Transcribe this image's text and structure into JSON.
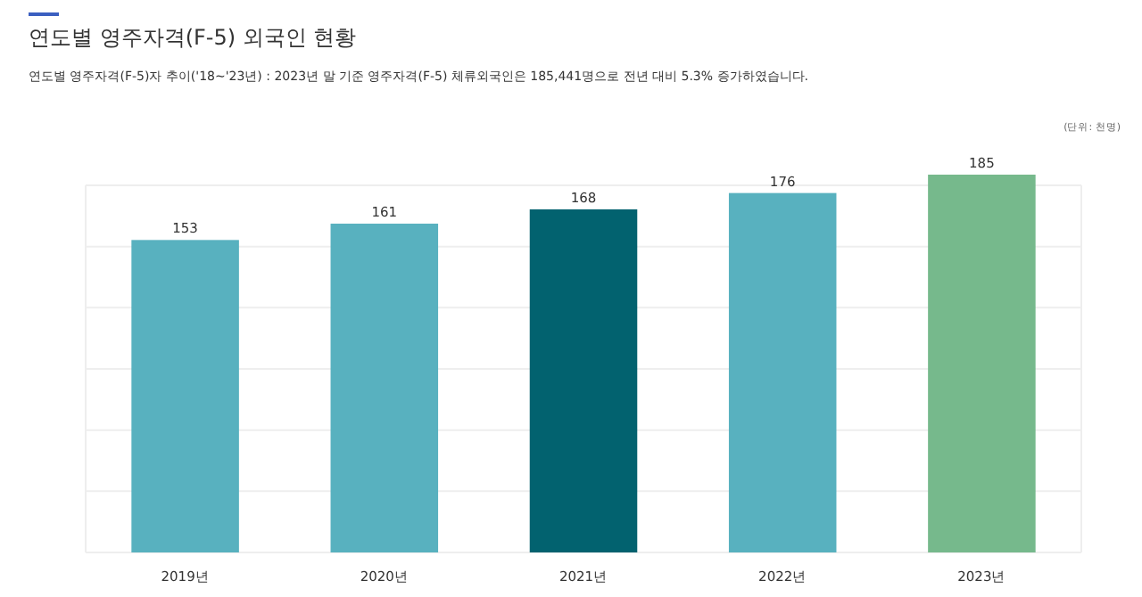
{
  "chart_data": {
    "type": "bar",
    "title": "연도별 영주자격(F-5) 외국인 현황",
    "subtitle": "연도별 영주자격(F-5)자 추이('18~'23년) : 2023년 말 기준 영주자격(F-5) 체류외국인은 185,441명으로 전년 대비 5.3% 증가하였습니다.",
    "annotations": [
      "(단위: 천명)"
    ],
    "categories": [
      "2019년",
      "2020년",
      "2021년",
      "2022년",
      "2023년"
    ],
    "values": [
      153,
      161,
      168,
      176,
      185
    ],
    "colors": [
      "#58b1bf",
      "#58b1bf",
      "#02626f",
      "#58b1bf",
      "#76b98c"
    ],
    "data_labels": true,
    "grid": "y"
  }
}
